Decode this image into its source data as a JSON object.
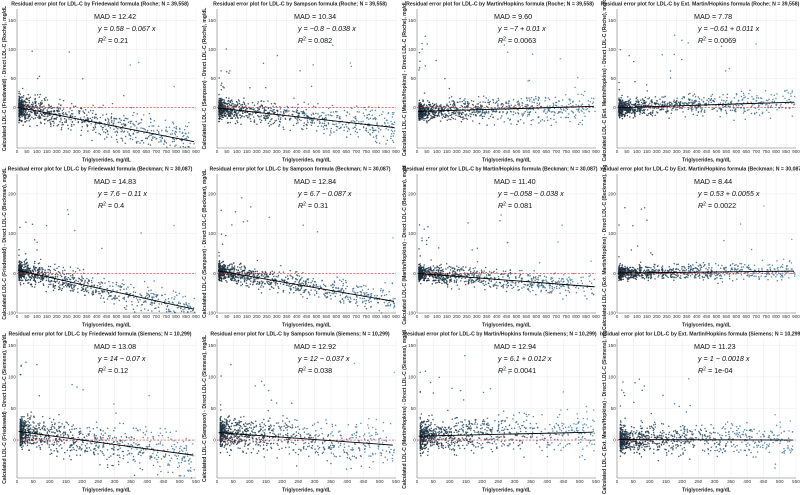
{
  "chart_data": [
    {
      "type": "scatter",
      "title": "Residual error plot for LDL-C by Friedewald formula (Roche; N = 39,558)",
      "xlabel": "Triglycerides, mg/dL",
      "ylabel": "Calculated LDL-C (Friedewald) - Direct LDL-C (Roche), mg/dL",
      "xlim": [
        0,
        900
      ],
      "ylim": [
        -70,
        170
      ],
      "xticks": [
        0,
        50,
        100,
        150,
        200,
        250,
        300,
        350,
        400,
        450,
        500,
        550,
        600,
        650,
        700,
        750,
        800,
        850,
        900
      ],
      "yticks": [
        0,
        50,
        100,
        150
      ],
      "annotation": {
        "mad": "MAD = 12.42",
        "fit": "y = 0.58 − 0.067 x",
        "r2_prefix": "R",
        "r2_suffix": "2",
        "r2_value": " = 0.21"
      },
      "fit": {
        "intercept": 0.58,
        "slope": -0.067
      },
      "spread_sd": 10
    },
    {
      "type": "scatter",
      "title": "Residual error plot for LDL-C by Sampson formula (Roche; N = 39,558)",
      "xlabel": "Triglycerides, mg/dL",
      "ylabel": "Calculated LDL-C (Sampson) - Direct LDL-C (Roche), mg/dL",
      "xlim": [
        0,
        900
      ],
      "ylim": [
        -70,
        170
      ],
      "xticks": [
        0,
        50,
        100,
        150,
        200,
        250,
        300,
        350,
        400,
        450,
        500,
        550,
        600,
        650,
        700,
        750,
        800,
        850,
        900
      ],
      "yticks": [
        0,
        50,
        100,
        150
      ],
      "annotation": {
        "mad": "MAD = 10.34",
        "fit": "y = −0.8 − 0.038 x",
        "r2_prefix": "R",
        "r2_suffix": "2",
        "r2_value": " = 0.082"
      },
      "fit": {
        "intercept": -0.8,
        "slope": -0.038
      },
      "spread_sd": 9
    },
    {
      "type": "scatter",
      "title": "Residual error plot for LDL-C by Martin/Hopkins formula (Roche; N = 39,558)",
      "xlabel": "Triglycerides, mg/dL",
      "ylabel": "Calculated LDL-C (Martin/Hopkins) - Direct LDL-C (Roche), mg/dL",
      "xlim": [
        0,
        900
      ],
      "ylim": [
        -70,
        170
      ],
      "xticks": [
        0,
        50,
        100,
        150,
        200,
        250,
        300,
        350,
        400,
        450,
        500,
        550,
        600,
        650,
        700,
        750,
        800,
        850,
        900
      ],
      "yticks": [
        0,
        50,
        100,
        150
      ],
      "annotation": {
        "mad": "MAD = 9.60",
        "fit": "y = −7 + 0.01 x",
        "r2_prefix": "R",
        "r2_suffix": "2",
        "r2_value": " = 0.0063"
      },
      "fit": {
        "intercept": -7,
        "slope": 0.01
      },
      "spread_sd": 8
    },
    {
      "type": "scatter",
      "title": "Residual error plot for LDL-C by Ext. Martin/Hopkins formula (Roche; N = 39,558)",
      "xlabel": "Triglycerides, mg/dL",
      "ylabel": "Calculated LDL-C (Ext. Martin/Hopkins) - Direct LDL-C (Roche), mg/dL",
      "xlim": [
        0,
        900
      ],
      "ylim": [
        -70,
        170
      ],
      "xticks": [
        0,
        50,
        100,
        150,
        200,
        250,
        300,
        350,
        400,
        450,
        500,
        550,
        600,
        650,
        700,
        750,
        800,
        850,
        900
      ],
      "yticks": [
        0,
        50,
        100,
        150
      ],
      "annotation": {
        "mad": "MAD = 7.78",
        "fit": "y = −0.61 + 0.011 x",
        "r2_prefix": "R",
        "r2_suffix": "2",
        "r2_value": " = 0.0069"
      },
      "fit": {
        "intercept": -0.61,
        "slope": 0.011
      },
      "spread_sd": 7
    },
    {
      "type": "scatter",
      "title": "Residual error plot for LDL-C by Friedewald formula (Beckman; N = 30,087)",
      "xlabel": "Triglycerides, mg/dL",
      "ylabel": "Calculated LDL-C (Friedewald) - Direct LDL-C (Beckman), mg/dL",
      "xlim": [
        0,
        900
      ],
      "ylim": [
        -100,
        250
      ],
      "xticks": [
        0,
        50,
        100,
        150,
        200,
        250,
        300,
        350,
        400,
        450,
        500,
        550,
        600,
        650,
        700,
        750,
        800,
        850,
        900
      ],
      "yticks": [
        -100,
        0,
        100,
        200
      ],
      "annotation": {
        "mad": "MAD = 14.83",
        "fit": "y = 7.6 − 0.11 x",
        "r2_prefix": "R",
        "r2_suffix": "2",
        "r2_value": " = 0.4"
      },
      "fit": {
        "intercept": 7.6,
        "slope": -0.11
      },
      "spread_sd": 12
    },
    {
      "type": "scatter",
      "title": "Residual error plot for LDL-C by Sampson formula (Beckman; N = 30,087)",
      "xlabel": "Triglycerides, mg/dL",
      "ylabel": "Calculated LDL-C (Sampson) - Direct LDL-C (Beckman), mg/dL",
      "xlim": [
        0,
        900
      ],
      "ylim": [
        -100,
        250
      ],
      "xticks": [
        0,
        50,
        100,
        150,
        200,
        250,
        300,
        350,
        400,
        450,
        500,
        550,
        600,
        650,
        700,
        750,
        800,
        850,
        900
      ],
      "yticks": [
        -100,
        0,
        100,
        200
      ],
      "annotation": {
        "mad": "MAD = 12.84",
        "fit": "y = 6.7 − 0.087 x",
        "r2_prefix": "R",
        "r2_suffix": "2",
        "r2_value": " = 0.31"
      },
      "fit": {
        "intercept": 6.7,
        "slope": -0.087
      },
      "spread_sd": 11
    },
    {
      "type": "scatter",
      "title": "Residual error plot for LDL-C by Martin/Hopkins formula (Beckman; N = 30,087)",
      "xlabel": "Triglycerides, mg/dL",
      "ylabel": "Calculated LDL-C (Martin/Hopkins) - Direct LDL-C (Beckman), mg/dL",
      "xlim": [
        0,
        900
      ],
      "ylim": [
        -100,
        250
      ],
      "xticks": [
        0,
        50,
        100,
        150,
        200,
        250,
        300,
        350,
        400,
        450,
        500,
        550,
        600,
        650,
        700,
        750,
        800,
        850,
        900
      ],
      "yticks": [
        -100,
        0,
        100,
        200
      ],
      "annotation": {
        "mad": "MAD = 11.40",
        "fit": "y = −0.058 − 0.038 x",
        "r2_prefix": "R",
        "r2_suffix": "2",
        "r2_value": " = 0.081"
      },
      "fit": {
        "intercept": -0.058,
        "slope": -0.038
      },
      "spread_sd": 10
    },
    {
      "type": "scatter",
      "title": "Residual error plot for LDL-C by Ext. Martin/Hopkins formula (Beckman; N = 30,087)",
      "xlabel": "Triglycerides, mg/dL",
      "ylabel": "Calculated LDL-C (Ext. Martin/Hopkins) - Direct LDL-C (Beckman), mg/dL",
      "xlim": [
        0,
        900
      ],
      "ylim": [
        -100,
        250
      ],
      "xticks": [
        0,
        50,
        100,
        150,
        200,
        250,
        300,
        350,
        400,
        450,
        500,
        550,
        600,
        650,
        700,
        750,
        800,
        850,
        900
      ],
      "yticks": [
        -100,
        0,
        100,
        200
      ],
      "annotation": {
        "mad": "MAD = 8.44",
        "fit": "y = 0.53 + 0.0055 x",
        "r2_prefix": "R",
        "r2_suffix": "2",
        "r2_value": " = 0.0022"
      },
      "fit": {
        "intercept": 0.53,
        "slope": 0.0055
      },
      "spread_sd": 8
    },
    {
      "type": "scatter",
      "title": "Residual error plot for LDL-C by Friedewald formula (Siemens; N = 10,299)",
      "xlabel": "Triglycerides, mg/dL",
      "ylabel": "Calculated LDL-C (Friedewald) - Direct LDL-C (Siemens), mg/dL",
      "xlim": [
        0,
        550
      ],
      "ylim": [
        -60,
        160
      ],
      "xticks": [
        0,
        50,
        100,
        150,
        200,
        250,
        300,
        350,
        400,
        450,
        500,
        550
      ],
      "yticks": [
        0,
        50,
        100,
        150
      ],
      "annotation": {
        "mad": "MAD = 13.08",
        "fit": "y = 14 − 0.07 x",
        "r2_prefix": "R",
        "r2_suffix": "2",
        "r2_value": " = 0.12"
      },
      "fit": {
        "intercept": 14,
        "slope": -0.07
      },
      "spread_sd": 11
    },
    {
      "type": "scatter",
      "title": "Residual error plot for LDL-C by Sampson formula (Siemens; N = 10,299)",
      "xlabel": "Triglycerides, mg/dL",
      "ylabel": "Calculated LDL-C (Sampson) - Direct LDL-C (Siemens), mg/dL",
      "xlim": [
        0,
        550
      ],
      "ylim": [
        -60,
        160
      ],
      "xticks": [
        0,
        50,
        100,
        150,
        200,
        250,
        300,
        350,
        400,
        450,
        500,
        550
      ],
      "yticks": [
        0,
        50,
        100,
        150
      ],
      "annotation": {
        "mad": "MAD = 12.92",
        "fit": "y = 12 − 0.037 x",
        "r2_prefix": "R",
        "r2_suffix": "2",
        "r2_value": " = 0.038"
      },
      "fit": {
        "intercept": 12,
        "slope": -0.037
      },
      "spread_sd": 11
    },
    {
      "type": "scatter",
      "title": "Residual error plot for LDL-C by Martin/Hopkins formula (Siemens; N = 10,299)",
      "xlabel": "Triglycerides, mg/dL",
      "ylabel": "Calculated LDL-C (Martin/Hopkins) - Direct LDL-C (Siemens), mg/dL",
      "xlim": [
        0,
        550
      ],
      "ylim": [
        -60,
        160
      ],
      "xticks": [
        0,
        50,
        100,
        150,
        200,
        250,
        300,
        350,
        400,
        450,
        500,
        550
      ],
      "yticks": [
        0,
        50,
        100,
        150
      ],
      "annotation": {
        "mad": "MAD = 12.94",
        "fit": "y = 6.1 + 0.012 x",
        "r2_prefix": "R",
        "r2_suffix": "2",
        "r2_value": " = 0.0041"
      },
      "fit": {
        "intercept": 6.1,
        "slope": 0.012
      },
      "spread_sd": 11
    },
    {
      "type": "scatter",
      "title": "Residual error plot for LDL-C by Ext. Martin/Hopkins formula (Siemens; N = 10,299)",
      "xlabel": "Triglycerides, mg/dL",
      "ylabel": "Calculated LDL-C (Ext. Martin/Hopkins) - Direct LDL-C (Siemens), mg/dL",
      "xlim": [
        0,
        550
      ],
      "ylim": [
        -60,
        160
      ],
      "xticks": [
        0,
        50,
        100,
        150,
        200,
        250,
        300,
        350,
        400,
        450,
        500,
        550
      ],
      "yticks": [
        0,
        50,
        100,
        150
      ],
      "annotation": {
        "mad": "MAD = 11.23",
        "fit": "y = 1 − 0.0018 x",
        "r2_prefix": "R",
        "r2_suffix": "2",
        "r2_value": " = 1e-04"
      },
      "fit": {
        "intercept": 1,
        "slope": -0.0018
      },
      "spread_sd": 10
    }
  ],
  "colors": {
    "point_low": "#101820",
    "point_high": "#5aa8d8",
    "fit_line": "#000000",
    "zero_line": "#e03030",
    "grid": "#e6e6e6",
    "axis": "#444444"
  }
}
